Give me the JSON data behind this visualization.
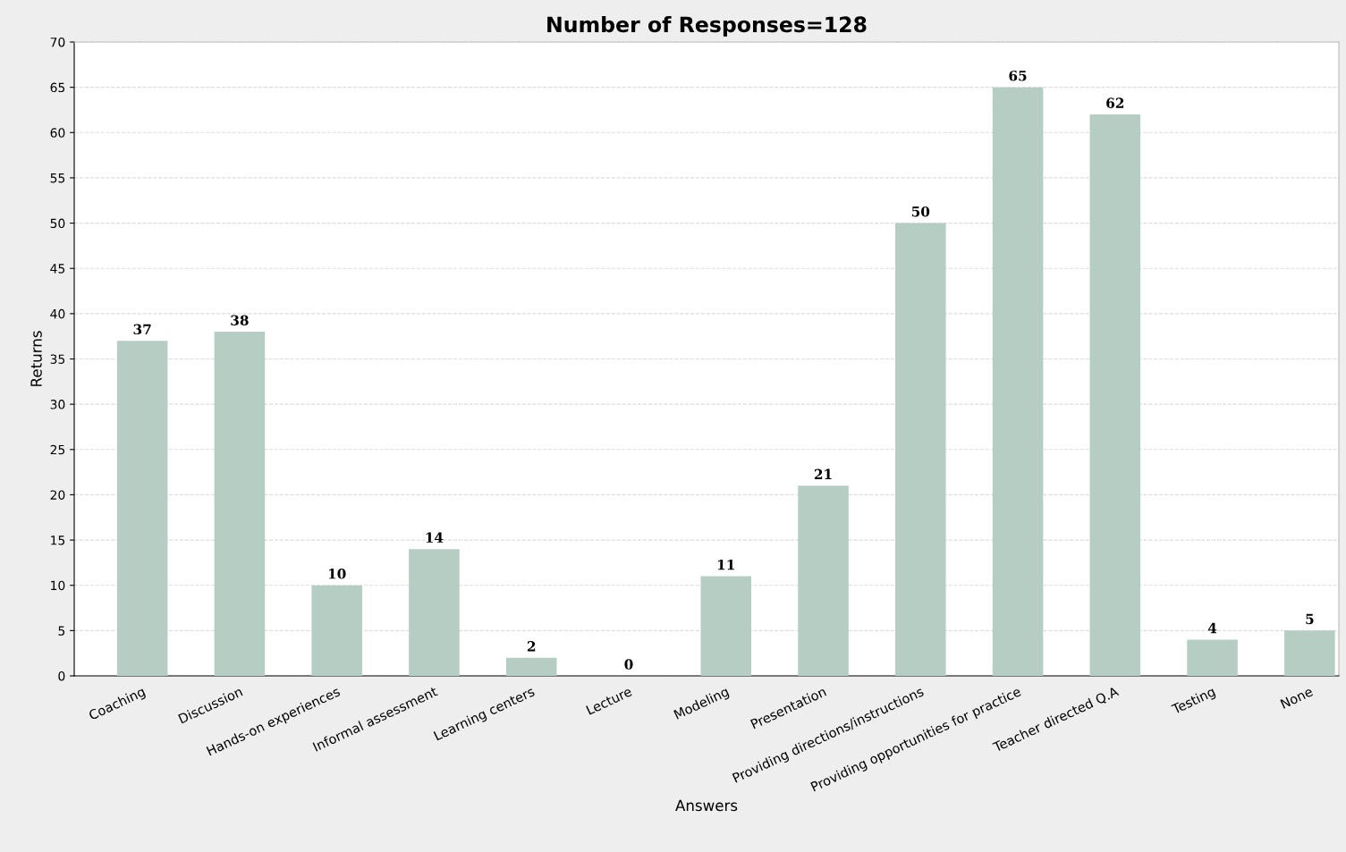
{
  "chart_data": {
    "type": "bar",
    "title": "Number of Responses=128",
    "xlabel": "Answers",
    "ylabel": "Returns",
    "categories": [
      "Coaching",
      "Discussion",
      "Hands-on experiences",
      "Informal assessment",
      "Learning centers",
      "Lecture",
      "Modeling",
      "Presentation",
      "Providing directions/instructions",
      "Providing opportunities for practice",
      "Teacher directed Q.A",
      "Testing",
      "None"
    ],
    "values": [
      37,
      38,
      10,
      14,
      2,
      0,
      11,
      21,
      50,
      65,
      62,
      4,
      5
    ],
    "color": "#b5cdc2",
    "ylim": [
      0,
      70
    ],
    "yticks": [
      0,
      5,
      10,
      15,
      20,
      25,
      30,
      35,
      40,
      45,
      50,
      55,
      60,
      65,
      70
    ],
    "grid": "y",
    "data_labels": true
  }
}
